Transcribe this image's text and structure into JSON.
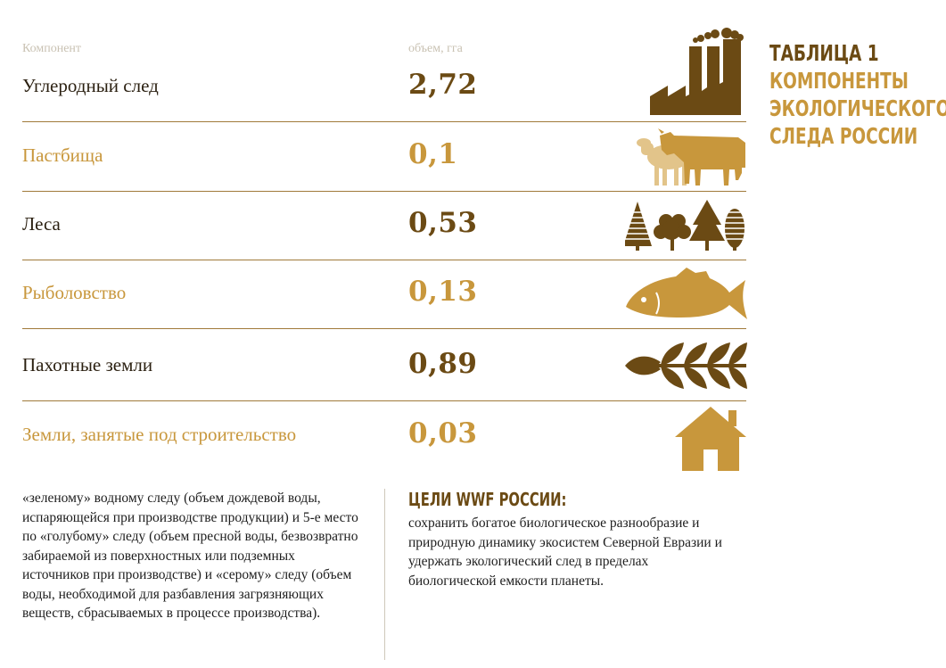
{
  "table": {
    "header": {
      "component": "Компонент",
      "volume": "объем, гга"
    },
    "rows": [
      {
        "name": "Углеродный след",
        "value": "2,72",
        "icon": "factory-icon",
        "color": "#6b4a14"
      },
      {
        "name": "Пастбища",
        "value": "0,1",
        "icon": "livestock-icon",
        "color": "#c8973c"
      },
      {
        "name": "Леса",
        "value": "0,53",
        "icon": "trees-icon",
        "color": "#6b4a14"
      },
      {
        "name": "Рыболовство",
        "value": "0,13",
        "icon": "fish-icon",
        "color": "#c8973c"
      },
      {
        "name": "Пахотные земли",
        "value": "0,89",
        "icon": "wheat-icon",
        "color": "#6b4a14"
      },
      {
        "name": "Земли, занятые под строительство",
        "value": "0,03",
        "icon": "house-icon",
        "color": "#c8973c"
      }
    ]
  },
  "title": {
    "line1": "ТАБЛИЦА 1",
    "line2": "КОМПОНЕНТЫ",
    "line3": "ЭКОЛОГИЧЕСКОГО",
    "line4": "СЛЕДА РОССИИ"
  },
  "left_text": "«зеленому» водному следу (объем дождевой воды, испаряющейся при производстве продукции) и 5-е место по «голубому» следу (объем пресной воды, безвозвратно забираемой из поверхностных или подземных источников при производстве) и «серому» следу (объем воды, необходимой для разбавления загрязняющих веществ, сбрасываемых в процессе производства).",
  "goals": {
    "heading": "ЦЕЛИ WWF РОССИИ:",
    "text": "сохранить богатое биологическое разнообразие и природную динамику экосистем Северной Евразии и удержать экологический след в пределах биологической емкости планеты."
  },
  "colors": {
    "brown": "#6b4a14",
    "gold": "#c8973c",
    "light_gold": "#e2c48a"
  }
}
